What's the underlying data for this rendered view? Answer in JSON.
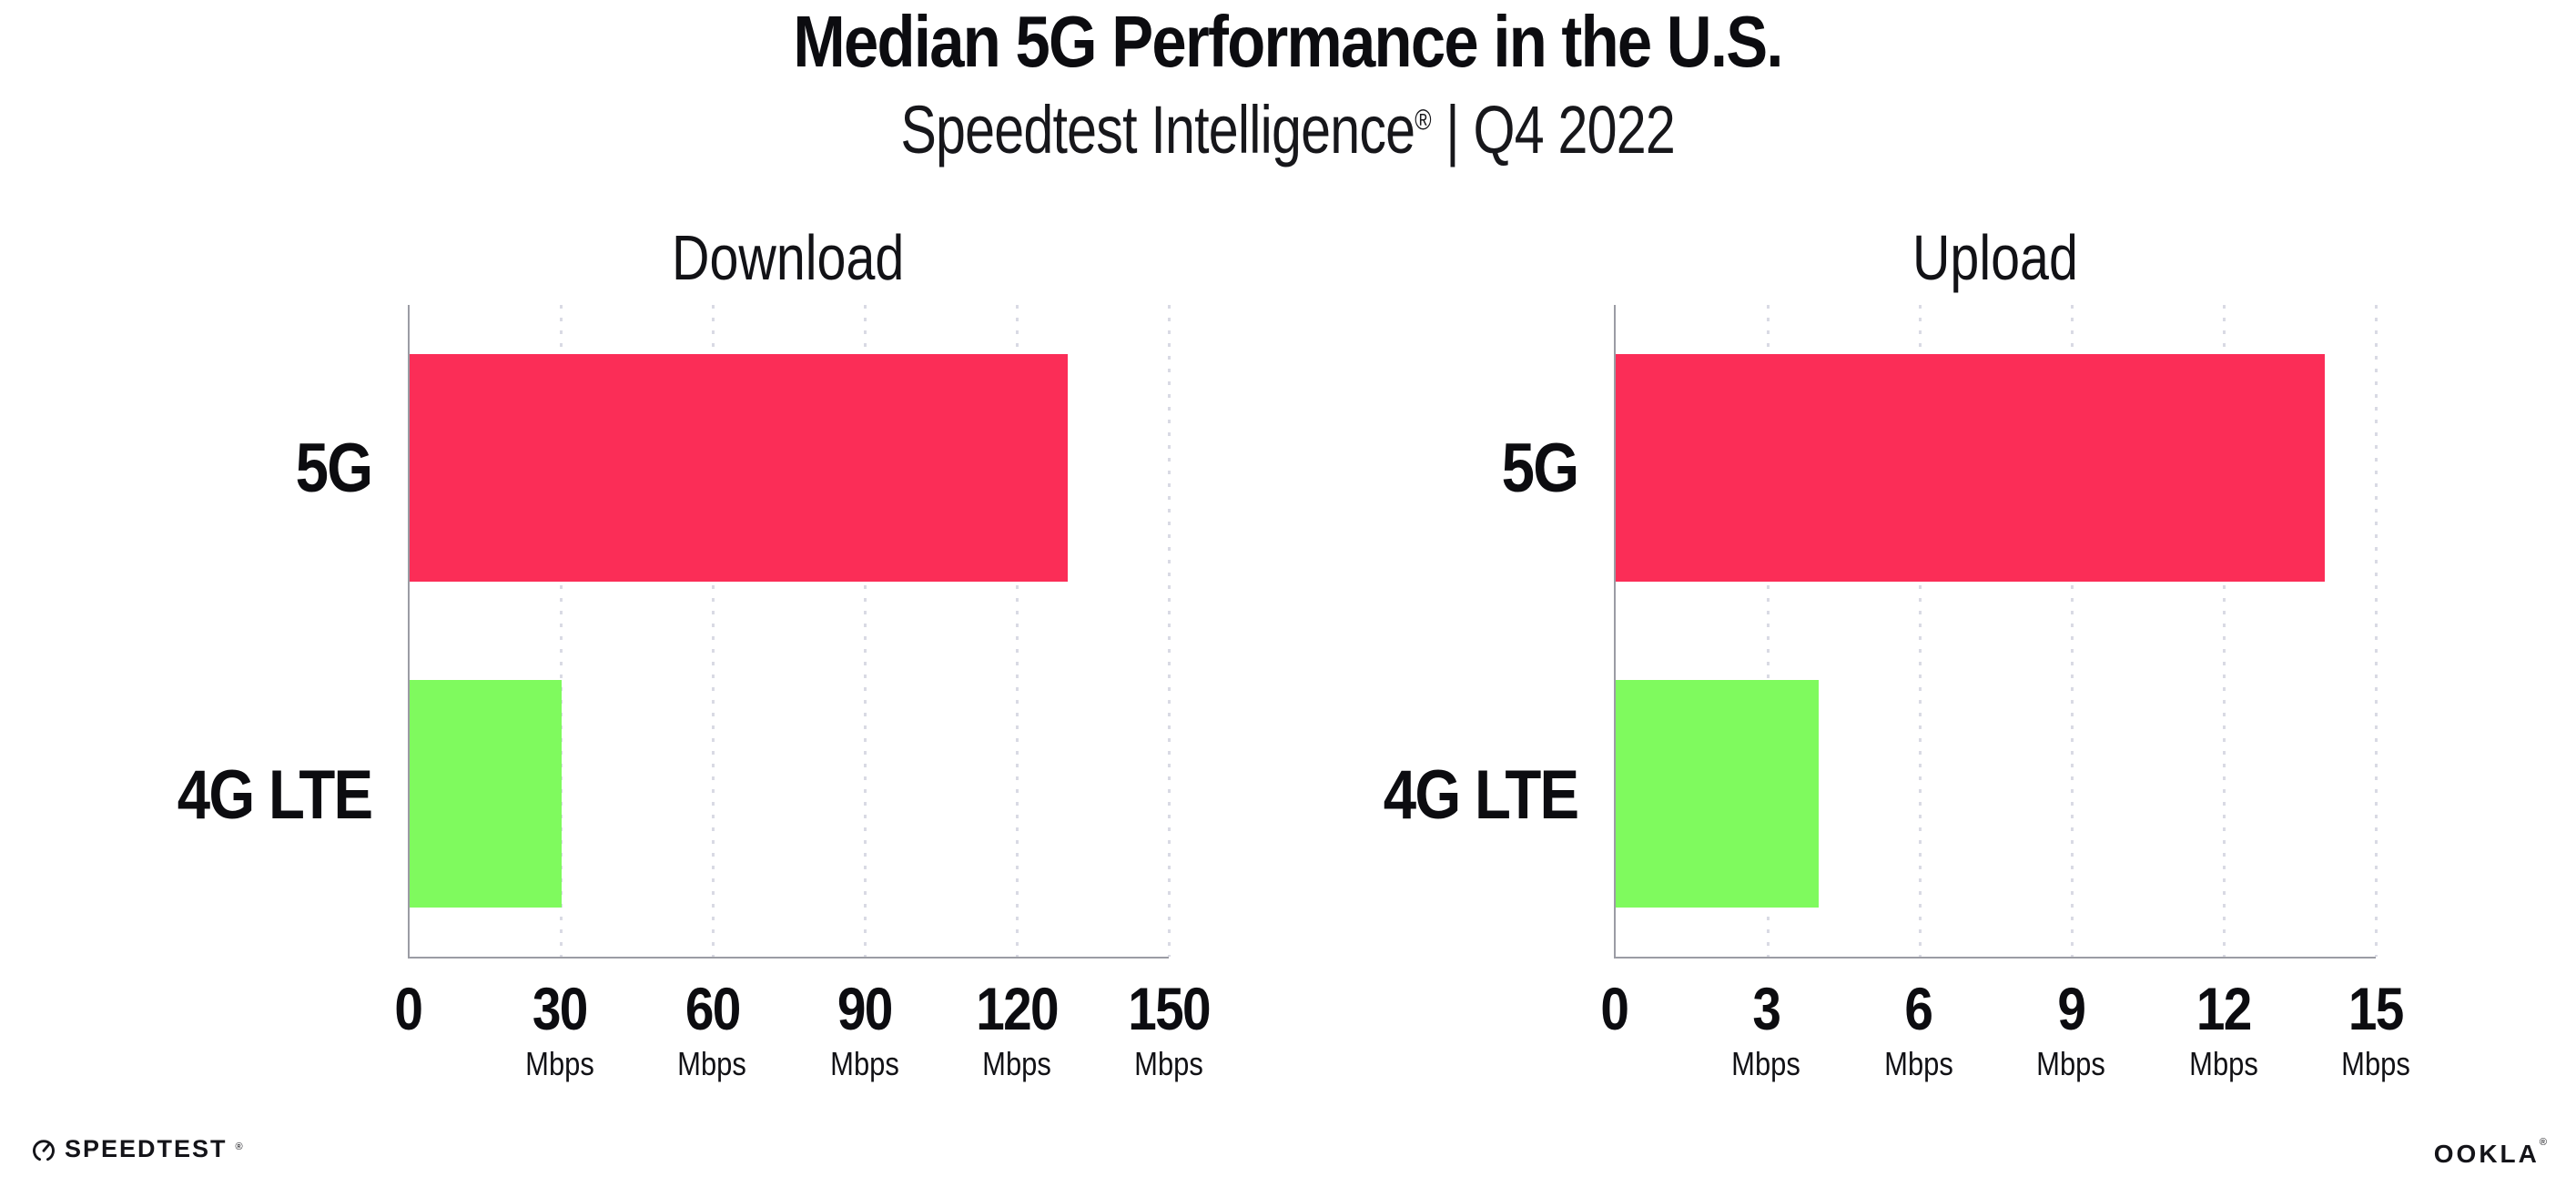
{
  "header": {
    "title": "Median 5G Performance in the U.S.",
    "subtitle_brand": "Speedtest Intelligence",
    "subtitle_reg": "®",
    "subtitle_sep": "|",
    "subtitle_period": "Q4 2022"
  },
  "chart_data": [
    {
      "type": "bar",
      "orientation": "horizontal",
      "title": "Download",
      "categories": [
        "5G",
        "4G LTE"
      ],
      "values": [
        130,
        30
      ],
      "unit": "Mbps",
      "xlim": [
        0,
        150
      ],
      "xticks": [
        0,
        30,
        60,
        90,
        120,
        150
      ],
      "bar_colors": [
        "#FB2D57",
        "#7FFA5E"
      ],
      "grid": "dotted-vertical",
      "legend": "none"
    },
    {
      "type": "bar",
      "orientation": "horizontal",
      "title": "Upload",
      "categories": [
        "5G",
        "4G LTE"
      ],
      "values": [
        14,
        4
      ],
      "unit": "Mbps",
      "xlim": [
        0,
        15
      ],
      "xticks": [
        0,
        3,
        6,
        9,
        12,
        15
      ],
      "bar_colors": [
        "#FB2D57",
        "#7FFA5E"
      ],
      "grid": "dotted-vertical",
      "legend": "none"
    }
  ],
  "footer": {
    "speedtest_icon": "gauge-icon",
    "speedtest_label": "SPEEDTEST",
    "speedtest_reg": "®",
    "ookla_label": "OOKLA",
    "ookla_reg": "®"
  },
  "colors": {
    "bar_5g": "#FB2D57",
    "bar_4g_lte": "#7FFA5E",
    "axis_line": "#9b9ca4",
    "gridline": "#d9dae4",
    "text": "#0c0c10",
    "background": "#ffffff"
  }
}
